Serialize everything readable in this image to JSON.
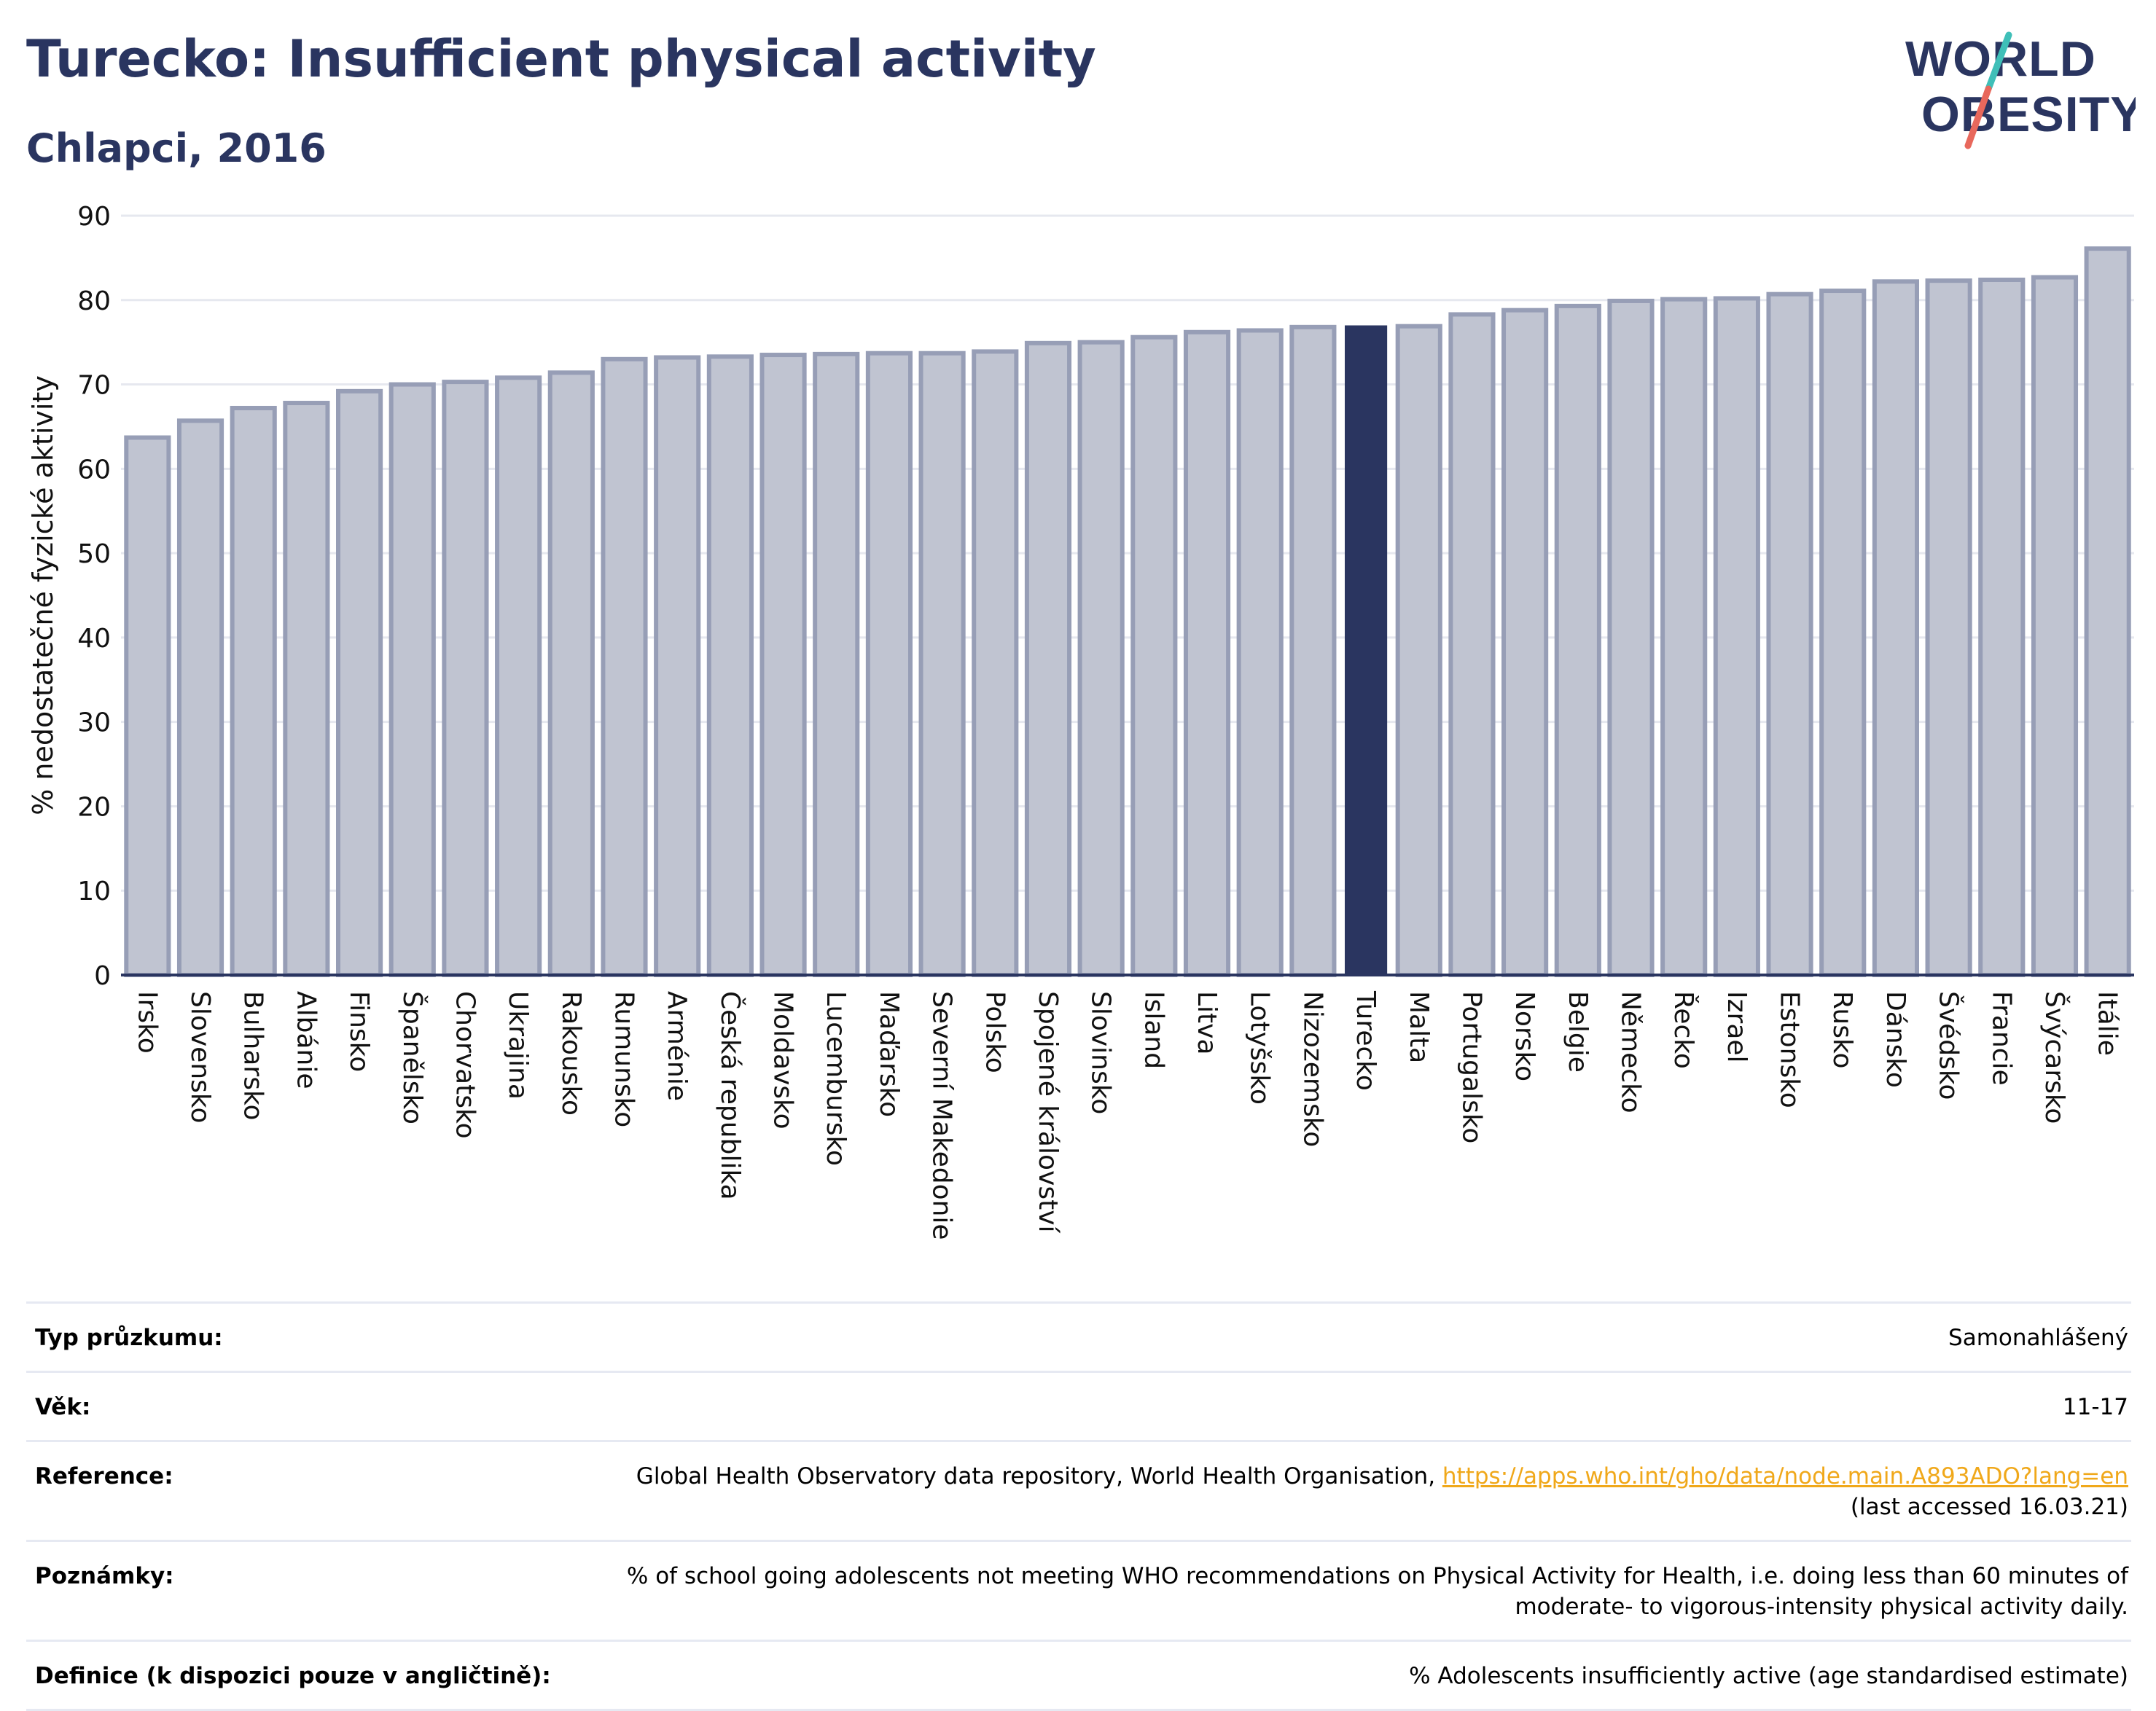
{
  "header": {
    "title": "Turecko: Insufficient physical activity",
    "subtitle": "Chlapci, 2016"
  },
  "logo": {
    "line1": "WORLD",
    "line2": "OBESITY",
    "colors": {
      "text": "#2a3560",
      "slash_top": "#3fbfb8",
      "slash_bottom": "#e8685c"
    }
  },
  "chart_data": {
    "type": "bar",
    "ylabel": "% nedostatečné fyzické aktivity",
    "xlabel": "",
    "ylim": [
      0,
      90
    ],
    "yticks": [
      0,
      10,
      20,
      30,
      40,
      50,
      60,
      70,
      80,
      90
    ],
    "grid": true,
    "highlight": "Turecko",
    "colors": {
      "bar": "#c0c4d1",
      "bar_edge": "#979eb6",
      "highlight": "#2a3560",
      "grid": "#e6e8ef",
      "axis": "#2a3560"
    },
    "categories": [
      "Irsko",
      "Slovensko",
      "Bulharsko",
      "Albánie",
      "Finsko",
      "Španělsko",
      "Chorvatsko",
      "Ukrajina",
      "Rakousko",
      "Rumunsko",
      "Arménie",
      "Česká republika",
      "Moldavsko",
      "Lucembursko",
      "Maďarsko",
      "Severní Makedonie",
      "Polsko",
      "Spojené království",
      "Slovinsko",
      "Island",
      "Litva",
      "Lotyšsko",
      "Nizozemsko",
      "Turecko",
      "Malta",
      "Portugalsko",
      "Norsko",
      "Belgie",
      "Německo",
      "Řecko",
      "Izrael",
      "Estonsko",
      "Rusko",
      "Dánsko",
      "Švédsko",
      "Francie",
      "Švýcarsko",
      "Itálie"
    ],
    "values": [
      63.7,
      65.7,
      67.2,
      67.8,
      69.2,
      70.0,
      70.3,
      70.8,
      71.4,
      73.0,
      73.2,
      73.3,
      73.5,
      73.6,
      73.7,
      73.7,
      73.9,
      74.9,
      75.0,
      75.6,
      76.2,
      76.4,
      76.8,
      77.0,
      76.9,
      78.3,
      78.8,
      79.3,
      79.9,
      80.1,
      80.2,
      80.7,
      81.1,
      82.2,
      82.3,
      82.4,
      82.7,
      86.1
    ]
  },
  "meta": {
    "rows": [
      {
        "label": "Typ průzkumu:",
        "value": "Samonahlášený"
      },
      {
        "label": "Věk:",
        "value": "11-17"
      },
      {
        "label": "Reference:",
        "value": "Global Health Observatory data repository, World Health Organisation, ",
        "link": "https://apps.who.int/gho/data/node.main.A893ADO?lang=en",
        "value2": "(last accessed 16.03.21)"
      },
      {
        "label": "Poznámky:",
        "value": "% of school going adolescents not meeting WHO recommendations on Physical Activity for Health, i.e. doing less than 60 minutes of",
        "value2": "moderate- to vigorous-intensity physical activity daily."
      },
      {
        "label": "Definice (k dispozici pouze v angličtině):",
        "value": "% Adolescents insufficiently active (age standardised estimate)"
      }
    ]
  }
}
